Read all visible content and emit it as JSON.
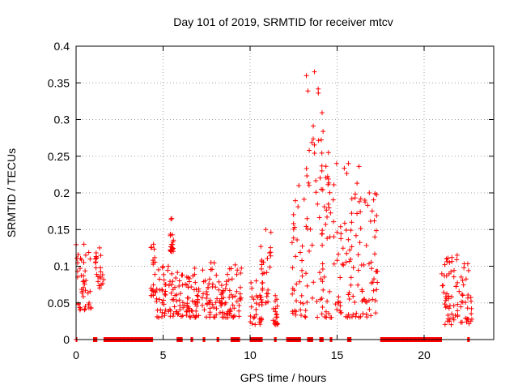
{
  "chart_data": {
    "type": "scatter",
    "title": "Day 101 of 2019, SRMTID for receiver mtcv",
    "xlabel": "GPS time / hours",
    "ylabel": "SRMTID / TECUs",
    "xlim": [
      0,
      24
    ],
    "ylim": [
      0,
      0.4
    ],
    "x_ticks": [
      0,
      5,
      10,
      15,
      20
    ],
    "x_tick_labels": [
      "0",
      "5",
      "10",
      "15",
      "20"
    ],
    "y_ticks": [
      0,
      0.05,
      0.1,
      0.15,
      0.2,
      0.25,
      0.3,
      0.35,
      0.4
    ],
    "y_tick_labels": [
      "0",
      "0.05",
      "0.1",
      "0.15",
      "0.2",
      "0.25",
      "0.3",
      "0.35",
      "0.4"
    ],
    "grid": true,
    "marker": "+",
    "marker_color": "#ff0000",
    "series": [
      {
        "name": "SRMTID",
        "clusters": [
          {
            "x": [
              0.0,
              0.9
            ],
            "y": [
              0.04,
              0.13
            ]
          },
          {
            "x": [
              1.1,
              1.6
            ],
            "y": [
              0.07,
              0.125
            ]
          },
          {
            "x": [
              4.3,
              4.6
            ],
            "y": [
              0.06,
              0.13
            ]
          },
          {
            "x": [
              4.6,
              6.0
            ],
            "y": [
              0.03,
              0.1
            ]
          },
          {
            "x": [
              5.4,
              5.6
            ],
            "y": [
              0.12,
              0.165
            ]
          },
          {
            "x": [
              6.0,
              9.5
            ],
            "y": [
              0.03,
              0.105
            ]
          },
          {
            "x": [
              10.0,
              10.7
            ],
            "y": [
              0.02,
              0.08
            ]
          },
          {
            "x": [
              10.6,
              11.2
            ],
            "y": [
              0.05,
              0.15
            ]
          },
          {
            "x": [
              11.3,
              11.6
            ],
            "y": [
              0.02,
              0.06
            ]
          },
          {
            "x": [
              12.4,
              13.2
            ],
            "y": [
              0.03,
              0.21
            ]
          },
          {
            "x": [
              13.2,
              14.2
            ],
            "y": [
              0.03,
              0.365
            ]
          },
          {
            "x": [
              14.0,
              15.0
            ],
            "y": [
              0.03,
              0.255
            ]
          },
          {
            "x": [
              15.0,
              16.3
            ],
            "y": [
              0.03,
              0.24
            ]
          },
          {
            "x": [
              16.3,
              17.4
            ],
            "y": [
              0.03,
              0.2
            ]
          },
          {
            "x": [
              21.0,
              22.8
            ],
            "y": [
              0.02,
              0.115
            ]
          }
        ],
        "zero_value_spans": [
          [
            0.0,
            0.05
          ],
          [
            1.0,
            1.2
          ],
          [
            1.6,
            4.4
          ],
          [
            5.8,
            6.1
          ],
          [
            6.6,
            6.7
          ],
          [
            7.3,
            7.4
          ],
          [
            8.1,
            8.2
          ],
          [
            8.9,
            9.4
          ],
          [
            10.0,
            10.7
          ],
          [
            11.4,
            11.5
          ],
          [
            12.1,
            12.9
          ],
          [
            13.3,
            13.6
          ],
          [
            14.0,
            14.2
          ],
          [
            14.6,
            14.7
          ],
          [
            15.6,
            15.8
          ],
          [
            17.5,
            21.0
          ],
          [
            22.5,
            22.6
          ]
        ]
      }
    ]
  }
}
